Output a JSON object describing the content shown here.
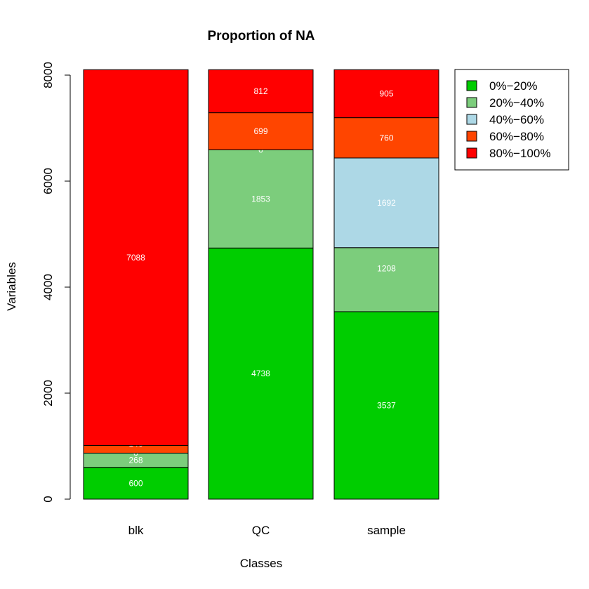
{
  "chart_data": {
    "type": "bar",
    "stacked": true,
    "title": "Proportion of NA",
    "xlabel": "Classes",
    "ylabel": "Variables",
    "ylim": [
      0,
      8000
    ],
    "yticks": [
      0,
      2000,
      4000,
      6000,
      8000
    ],
    "categories": [
      "blk",
      "QC",
      "sample"
    ],
    "series": [
      {
        "name": "0%−20%",
        "color": "#00cd00",
        "values": [
          600,
          4738,
          3537
        ],
        "labels": [
          "600",
          "4738",
          "3537"
        ]
      },
      {
        "name": "20%−40%",
        "color": "#7ccd7c",
        "values": [
          268,
          1853,
          1208
        ],
        "labels": [
          "268",
          "1853",
          "1208"
        ]
      },
      {
        "name": "40%−60%",
        "color": "#add8e6",
        "values": [
          0,
          0,
          1692
        ],
        "labels": [
          "0",
          "0",
          "1692"
        ]
      },
      {
        "name": "60%−80%",
        "color": "#ff4500",
        "values": [
          146,
          699,
          760
        ],
        "labels": [
          "146",
          "699",
          "760"
        ]
      },
      {
        "name": "80%−100%",
        "color": "#ff0000",
        "values": [
          7088,
          812,
          905
        ],
        "labels": [
          "7088",
          "812",
          "905"
        ]
      }
    ],
    "legend_position": "top-right",
    "grid": false
  }
}
